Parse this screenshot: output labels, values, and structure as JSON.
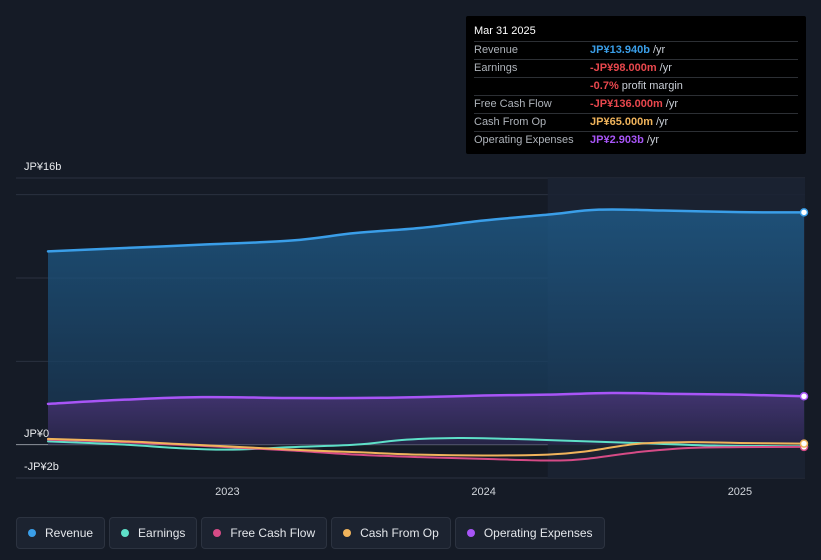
{
  "chart_data": {
    "type": "area",
    "title": "",
    "xlabel": "",
    "ylabel": "",
    "y_axis_labels": {
      "top": "JP¥16b",
      "zero": "JP¥0",
      "bottom": "-JP¥2b"
    },
    "ylim": [
      -2,
      16
    ],
    "xlim": [
      2022.3,
      2025.25
    ],
    "x_ticks": [
      {
        "value": 2023.0,
        "label": "2023"
      },
      {
        "value": 2024.0,
        "label": "2024"
      },
      {
        "value": 2025.0,
        "label": "2025"
      }
    ],
    "grid": true,
    "highlight_start": 2024.25,
    "series": [
      {
        "name": "Revenue",
        "color": "#3a9ee8",
        "fill": true,
        "points": [
          [
            2022.3,
            11.6
          ],
          [
            2022.6,
            11.8
          ],
          [
            2022.9,
            12.0
          ],
          [
            2023.25,
            12.25
          ],
          [
            2023.5,
            12.7
          ],
          [
            2023.75,
            13.0
          ],
          [
            2024.0,
            13.45
          ],
          [
            2024.25,
            13.8
          ],
          [
            2024.45,
            14.1
          ],
          [
            2024.7,
            14.05
          ],
          [
            2025.0,
            13.95
          ],
          [
            2025.25,
            13.94
          ]
        ]
      },
      {
        "name": "Operating Expenses",
        "color": "#a855f7",
        "fill": true,
        "points": [
          [
            2022.3,
            2.45
          ],
          [
            2022.6,
            2.7
          ],
          [
            2022.9,
            2.85
          ],
          [
            2023.25,
            2.8
          ],
          [
            2023.5,
            2.8
          ],
          [
            2023.75,
            2.85
          ],
          [
            2024.0,
            2.95
          ],
          [
            2024.25,
            3.0
          ],
          [
            2024.5,
            3.1
          ],
          [
            2024.75,
            3.05
          ],
          [
            2025.0,
            3.0
          ],
          [
            2025.25,
            2.903
          ]
        ]
      },
      {
        "name": "Earnings",
        "color": "#5ee0c8",
        "fill": false,
        "points": [
          [
            2022.3,
            0.2
          ],
          [
            2022.6,
            0.0
          ],
          [
            2022.8,
            -0.2
          ],
          [
            2023.0,
            -0.3
          ],
          [
            2023.25,
            -0.15
          ],
          [
            2023.5,
            0.0
          ],
          [
            2023.7,
            0.3
          ],
          [
            2023.9,
            0.4
          ],
          [
            2024.1,
            0.35
          ],
          [
            2024.3,
            0.25
          ],
          [
            2024.6,
            0.1
          ],
          [
            2024.9,
            -0.05
          ],
          [
            2025.25,
            -0.098
          ]
        ]
      },
      {
        "name": "Free Cash Flow",
        "color": "#d64b86",
        "fill": false,
        "points": [
          [
            2022.3,
            0.3
          ],
          [
            2022.6,
            0.15
          ],
          [
            2022.8,
            0.0
          ],
          [
            2023.0,
            -0.15
          ],
          [
            2023.25,
            -0.35
          ],
          [
            2023.5,
            -0.6
          ],
          [
            2023.75,
            -0.75
          ],
          [
            2024.0,
            -0.85
          ],
          [
            2024.25,
            -0.95
          ],
          [
            2024.4,
            -0.85
          ],
          [
            2024.6,
            -0.45
          ],
          [
            2024.8,
            -0.2
          ],
          [
            2025.0,
            -0.15
          ],
          [
            2025.25,
            -0.136
          ]
        ]
      },
      {
        "name": "Cash From Op",
        "color": "#f0b45c",
        "fill": false,
        "points": [
          [
            2022.3,
            0.35
          ],
          [
            2022.6,
            0.2
          ],
          [
            2022.8,
            0.05
          ],
          [
            2023.0,
            -0.1
          ],
          [
            2023.25,
            -0.3
          ],
          [
            2023.5,
            -0.45
          ],
          [
            2023.75,
            -0.6
          ],
          [
            2024.0,
            -0.65
          ],
          [
            2024.25,
            -0.6
          ],
          [
            2024.4,
            -0.4
          ],
          [
            2024.6,
            0.05
          ],
          [
            2024.8,
            0.15
          ],
          [
            2025.0,
            0.1
          ],
          [
            2025.25,
            0.065
          ]
        ]
      }
    ]
  },
  "tooltip": {
    "date": "Mar 31 2025",
    "rows": [
      {
        "name": "Revenue",
        "value": "JP¥13.940b",
        "unit": "/yr",
        "color": "#3a9ee8"
      },
      {
        "name": "Earnings",
        "value": "-JP¥98.000m",
        "unit": "/yr",
        "color": "#e8474d"
      },
      {
        "name": "",
        "value": "-0.7%",
        "unit": "profit margin",
        "color": "#e8474d"
      },
      {
        "name": "Free Cash Flow",
        "value": "-JP¥136.000m",
        "unit": "/yr",
        "color": "#e8474d"
      },
      {
        "name": "Cash From Op",
        "value": "JP¥65.000m",
        "unit": "/yr",
        "color": "#f0b45c"
      },
      {
        "name": "Operating Expenses",
        "value": "JP¥2.903b",
        "unit": "/yr",
        "color": "#a855f7"
      }
    ]
  },
  "legend": [
    {
      "label": "Revenue",
      "color": "#3a9ee8"
    },
    {
      "label": "Earnings",
      "color": "#5ee0c8"
    },
    {
      "label": "Free Cash Flow",
      "color": "#d64b86"
    },
    {
      "label": "Cash From Op",
      "color": "#f0b45c"
    },
    {
      "label": "Operating Expenses",
      "color": "#a855f7"
    }
  ]
}
